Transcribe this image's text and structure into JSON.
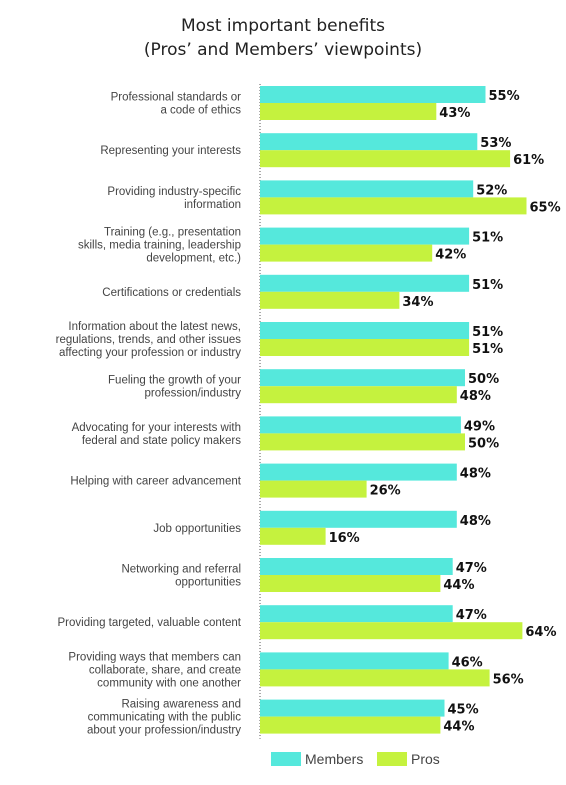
{
  "chart_data": {
    "type": "bar",
    "orientation": "horizontal",
    "title_lines": [
      "Most important benefits",
      "(Pros’ and Members’ viewpoints)"
    ],
    "categories": [
      [
        "Professional standards or",
        "a code of ethics"
      ],
      [
        "Representing your interests"
      ],
      [
        "Providing industry-specific",
        "information"
      ],
      [
        "Training (e.g., presentation",
        "skills, media training, leadership",
        "development, etc.)"
      ],
      [
        "Certifications or credentials"
      ],
      [
        "Information about the latest news,",
        "regulations, trends, and other issues",
        "affecting your profession or industry"
      ],
      [
        "Fueling the growth of your",
        "profession/industry"
      ],
      [
        "Advocating for your interests with",
        "federal and state policy makers"
      ],
      [
        "Helping with career advancement"
      ],
      [
        "Job opportunities"
      ],
      [
        "Networking and referral",
        "opportunities"
      ],
      [
        "Providing targeted, valuable content"
      ],
      [
        "Providing ways that members can",
        "collaborate, share, and create",
        "community with one another"
      ],
      [
        "Raising awareness and",
        "communicating with the public",
        "about your profession/industry"
      ]
    ],
    "series": [
      {
        "name": "Members",
        "color": "#55e8dc",
        "values": [
          55,
          53,
          52,
          51,
          51,
          51,
          50,
          49,
          48,
          48,
          47,
          47,
          46,
          45
        ]
      },
      {
        "name": "Pros",
        "color": "#c5f23e",
        "values": [
          43,
          61,
          65,
          42,
          34,
          51,
          48,
          50,
          26,
          16,
          44,
          64,
          56,
          44
        ]
      }
    ],
    "value_suffix": "%",
    "xlim": [
      0,
      100
    ],
    "grid": false,
    "legend_position": "bottom"
  }
}
